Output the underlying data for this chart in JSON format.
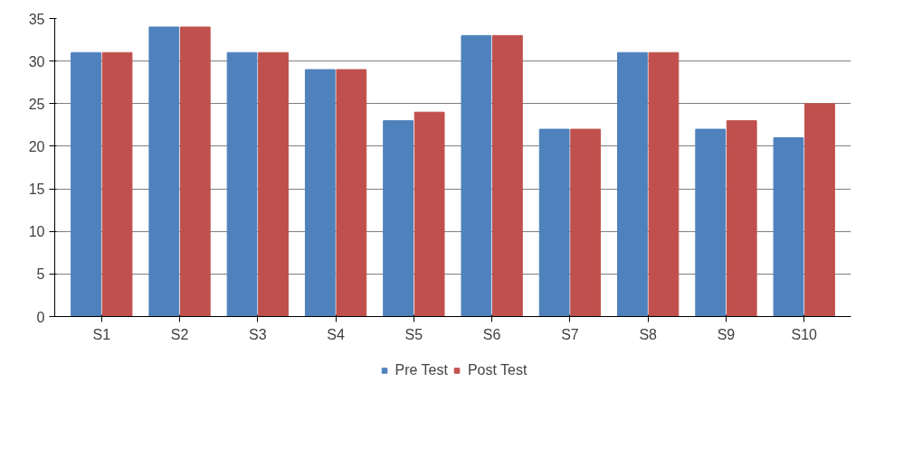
{
  "chart_data": {
    "type": "bar",
    "categories": [
      "S1",
      "S2",
      "S3",
      "S4",
      "S5",
      "S6",
      "S7",
      "S8",
      "S9",
      "S10"
    ],
    "series": [
      {
        "name": "Pre Test",
        "color": "#4f81bd",
        "values": [
          31,
          34,
          31,
          29,
          23,
          33,
          22,
          31,
          22,
          21
        ]
      },
      {
        "name": "Post Test",
        "color": "#c0504d",
        "values": [
          31,
          34,
          31,
          29,
          24,
          33,
          22,
          31,
          23,
          25
        ]
      }
    ],
    "ylim": [
      0,
      35
    ],
    "yticks": [
      0,
      5,
      10,
      15,
      20,
      25,
      30,
      35
    ],
    "grid": "y",
    "legend": "bottom"
  }
}
